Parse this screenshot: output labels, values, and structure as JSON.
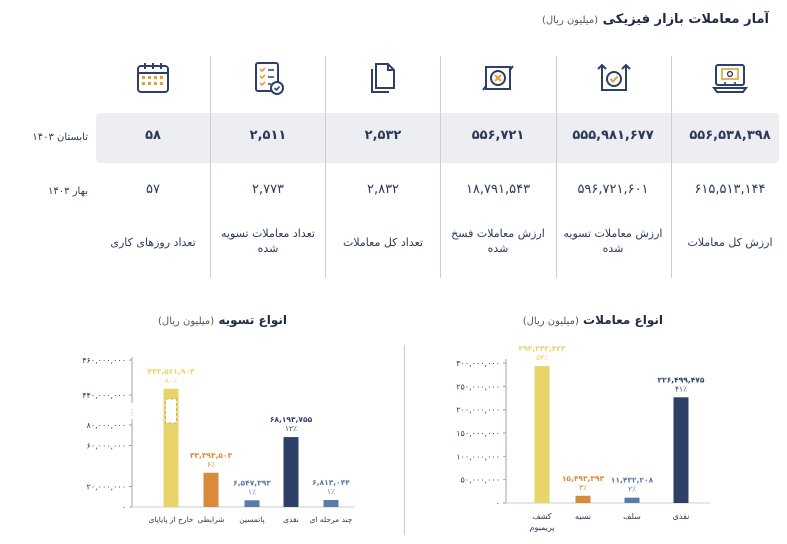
{
  "page": {
    "title": "آمار معاملات بازار فیزیکی",
    "title_unit": "(میلیون ریال)"
  },
  "summary": {
    "periods": [
      "تابستان ۱۴۰۳",
      "بهار ۱۴۰۳"
    ],
    "columns": [
      {
        "icon": "monitor-money-icon",
        "label": "ارزش کل معاملات",
        "current": "۵۵۶,۵۳۸,۳۹۸",
        "previous": "۶۱۵,۵۱۳,۱۴۴"
      },
      {
        "icon": "settled-check-icon",
        "label": "ارزش معاملات تسویه شده",
        "current": "۵۵۵,۹۸۱,۶۷۷",
        "previous": "۵۹۶,۷۲۱,۶۰۱"
      },
      {
        "icon": "cancelled-x-icon",
        "label": "ارزش معاملات فسخ شده",
        "current": "۵۵۶,۷۲۱",
        "previous": "۱۸,۷۹۱,۵۴۳"
      },
      {
        "icon": "documents-icon",
        "label": "تعداد کل معاملات",
        "current": "۲,۵۳۲",
        "previous": "۲,۸۳۲"
      },
      {
        "icon": "checklist-icon",
        "label": "تعداد معاملات تسویه شده",
        "current": "۲,۵۱۱",
        "previous": "۲,۷۷۳"
      },
      {
        "icon": "calendar-icon",
        "label": "تعداد روزهای کاری",
        "current": "۵۸",
        "previous": "۵۷"
      }
    ]
  },
  "colors": {
    "yellow": "#e8d46a",
    "orange": "#d98a3a",
    "steel": "#5b7aa8",
    "navy": "#2e3f68"
  },
  "chart_data": [
    {
      "type": "bar",
      "title": "انواع معاملات",
      "unit": "(میلیون ریال)",
      "categories": [
        "کشف پریمیوم",
        "نسیه",
        "سلف",
        "نقدی"
      ],
      "values": [
        293232423,
        15493393,
        11432208,
        226499475
      ],
      "value_labels": [
        "۲۹۳,۲۳۲,۴۲۳",
        "۱۵,۴۹۳,۳۹۳",
        "۱۱,۴۳۲,۲۰۸",
        "۲۲۶,۴۹۹,۴۷۵"
      ],
      "percent_labels": [
        "۵۳٪",
        "۳٪",
        "۲٪",
        "۴۱٪"
      ],
      "bar_colors": [
        "#e8d46a",
        "#d98a3a",
        "#5b7aa8",
        "#2e3f68"
      ],
      "ylim": [
        0,
        300000000
      ],
      "yticks": [
        0,
        50000000,
        100000000,
        150000000,
        200000000,
        250000000,
        300000000
      ],
      "ytick_labels": [
        "۰",
        "۵۰,۰۰۰,۰۰۰",
        "۱۰۰,۰۰۰,۰۰۰",
        "۱۵۰,۰۰۰,۰۰۰",
        "۲۰۰,۰۰۰,۰۰۰",
        "۲۵۰,۰۰۰,۰۰۰",
        "۳۰۰,۰۰۰,۰۰۰"
      ]
    },
    {
      "type": "bar",
      "title": "انواع تسویه",
      "unit": "(میلیون ریال)",
      "categories": [
        "خارج از پایاپای",
        "شرایطی",
        "پاتمسین",
        "نقدی",
        "چند مرحله ای"
      ],
      "values": [
        443561903,
        33393503,
        6547393,
        68193755,
        6813044
      ],
      "value_labels": [
        "۴۴۳,۵۶۱,۹۰۳",
        "۳۳,۳۹۳,۵۰۳",
        "۶,۵۴۷,۳۹۳",
        "۶۸,۱۹۳,۷۵۵",
        "۶,۸۱۳,۰۴۴"
      ],
      "percent_labels": [
        "۸۰٪",
        "۶٪",
        "۱٪",
        "۱۲٪",
        "۱٪"
      ],
      "bar_colors": [
        "#e8d46a",
        "#d98a3a",
        "#5b7aa8",
        "#2e3f68",
        "#5b7aa8"
      ],
      "broken_axis": true,
      "ytick_labels": [
        "۰",
        "۲۰,۰۰۰,۰۰۰",
        "۶۰,۰۰۰,۰۰۰",
        "۸۰,۰۰۰,۰۰۰",
        "۴۴۰,۰۰۰,۰۰۰",
        "۴۶۰,۰۰۰,۰۰۰"
      ]
    }
  ]
}
